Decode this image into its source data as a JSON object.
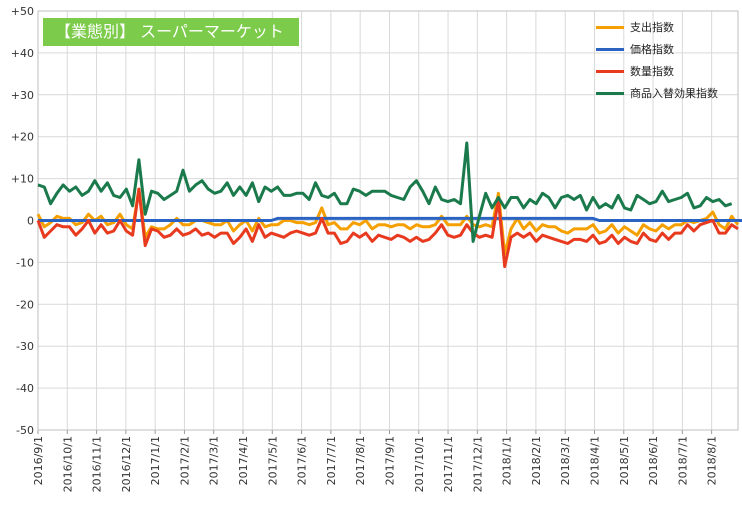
{
  "chart_data": {
    "type": "line",
    "title": "【業態別】 スーパーマーケット",
    "ylim": [
      -50,
      50
    ],
    "yticks": [
      "-50",
      "-40",
      "-30",
      "-20",
      "-10",
      "0",
      "+10",
      "+20",
      "+30",
      "+40",
      "+50"
    ],
    "ytick_values": [
      -50,
      -40,
      -30,
      -20,
      -10,
      0,
      10,
      20,
      30,
      40,
      50
    ],
    "xtick_labels": [
      "2016/9/1",
      "2016/10/1",
      "2016/11/1",
      "2016/12/1",
      "2017/1/1",
      "2017/2/1",
      "2017/3/1",
      "2017/4/1",
      "2017/5/1",
      "2017/6/1",
      "2017/7/1",
      "2017/8/1",
      "2017/9/1",
      "2017/10/1",
      "2017/11/1",
      "2017/12/1",
      "2018/1/1",
      "2018/2/1",
      "2018/3/1",
      "2018/4/1",
      "2018/5/1",
      "2018/6/1",
      "2018/7/1",
      "2018/8/1"
    ],
    "grid": true,
    "legend_position": "top-right",
    "series": [
      {
        "name": "支出指数",
        "color": "#f5a000",
        "values": [
          1.5,
          -1.5,
          -0.5,
          1,
          0.5,
          0.5,
          -1,
          -0.5,
          1.5,
          0,
          1,
          -1,
          -0.5,
          1.5,
          -1,
          -2,
          7.5,
          -4,
          -1.5,
          -2,
          -2,
          -1,
          0.5,
          -1,
          -1,
          0,
          0,
          -0.5,
          -1,
          -1,
          0,
          -2.5,
          -1,
          0,
          -2.5,
          0.5,
          -1.5,
          -1,
          -1,
          0,
          0,
          -0.5,
          -0.5,
          -1,
          -0.5,
          3,
          -1,
          -0.5,
          -2,
          -2,
          -0.5,
          -1,
          0,
          -2,
          -1,
          -1,
          -1.5,
          -1,
          -1,
          -2,
          -1,
          -1.5,
          -1.5,
          -1,
          1,
          -1,
          -1,
          -1,
          1,
          -1,
          -1.5,
          -1,
          -1.5,
          6.5,
          -8,
          -2,
          0.5,
          -2,
          -0.5,
          -2.5,
          -1,
          -1.5,
          -1.5,
          -2.5,
          -3,
          -2,
          -2,
          -2,
          -1,
          -3,
          -2.5,
          -1,
          -3,
          -1.5,
          -2.5,
          -3.5,
          -1,
          -2,
          -2.5,
          -1,
          -2,
          -1,
          -1,
          0,
          -0.5,
          0,
          0.5,
          2,
          -1,
          -2,
          1,
          -1
        ]
      },
      {
        "name": "価格指数",
        "color": "#2a63c2",
        "values": [
          0,
          0,
          0,
          0,
          0,
          0,
          0,
          0,
          0,
          0,
          0,
          0,
          0,
          0,
          0,
          0,
          0,
          0,
          0,
          0,
          0,
          0,
          0,
          0,
          0,
          0,
          0,
          0,
          0,
          0,
          0,
          0,
          0,
          0,
          0,
          0,
          0,
          0,
          0.5,
          0.5,
          0.5,
          0.5,
          0.5,
          0.5,
          0.5,
          0.5,
          0.5,
          0.5,
          0.5,
          0.5,
          0.5,
          0.5,
          0.5,
          0.5,
          0.5,
          0.5,
          0.5,
          0.5,
          0.5,
          0.5,
          0.5,
          0.5,
          0.5,
          0.5,
          0.5,
          0.5,
          0.5,
          0.5,
          0.5,
          0.5,
          0.5,
          0.5,
          0.5,
          0.5,
          0.5,
          0.5,
          0.5,
          0.5,
          0.5,
          0.5,
          0.5,
          0.5,
          0.5,
          0.5,
          0.5,
          0.5,
          0.5,
          0.5,
          0.5,
          0,
          0,
          0,
          0,
          0,
          0,
          0,
          0,
          0,
          0,
          0,
          0,
          0,
          0,
          0,
          0,
          0,
          0,
          0,
          0,
          0,
          0,
          0,
          0,
          0
        ]
      },
      {
        "name": "数量指数",
        "color": "#e83a1f",
        "values": [
          0,
          -4,
          -2.5,
          -1,
          -1.5,
          -1.5,
          -3.5,
          -2,
          0,
          -3,
          -1,
          -3,
          -2.5,
          0,
          -2.5,
          -3.5,
          7.5,
          -6,
          -2,
          -2.5,
          -4,
          -3.5,
          -2,
          -3.5,
          -3,
          -2,
          -3.5,
          -3,
          -4,
          -3,
          -3,
          -5.5,
          -4,
          -2,
          -5,
          -1,
          -4,
          -3,
          -3.5,
          -4,
          -3,
          -2.5,
          -3,
          -3.5,
          -3,
          0.5,
          -3,
          -3,
          -5.5,
          -5,
          -3,
          -4,
          -3,
          -5,
          -3.5,
          -4,
          -4.5,
          -3.5,
          -4,
          -5,
          -4,
          -5,
          -4.5,
          -3,
          -1,
          -3.5,
          -4,
          -3.5,
          -1,
          -3,
          -4,
          -3.5,
          -4,
          5,
          -11,
          -4,
          -3,
          -4,
          -3,
          -5,
          -3.5,
          -4,
          -4.5,
          -5,
          -5.5,
          -4.5,
          -4.5,
          -5,
          -3.5,
          -5.5,
          -5,
          -3.5,
          -5.5,
          -4,
          -5,
          -5.5,
          -3,
          -4.5,
          -5,
          -3,
          -4.5,
          -3,
          -3,
          -1,
          -2.5,
          -1,
          -0.5,
          0,
          -3,
          -3,
          -1,
          -2
        ]
      },
      {
        "name": "商品入替効果指数",
        "color": "#1a7a4c",
        "values": [
          8.5,
          8,
          4,
          6.5,
          8.5,
          7,
          8,
          6,
          7,
          9.5,
          7,
          9,
          6,
          5.5,
          7.5,
          3.5,
          14.5,
          1.5,
          7,
          6.5,
          5,
          6,
          7,
          12,
          7,
          8.5,
          9.5,
          7.5,
          6.5,
          7,
          9,
          6,
          8,
          6,
          9,
          4.5,
          8,
          7,
          8,
          6,
          6,
          6.5,
          6.5,
          5,
          9,
          6,
          5.5,
          6.5,
          4,
          4,
          7.5,
          7,
          6,
          7,
          7,
          7,
          6,
          5.5,
          5,
          8,
          9.5,
          7,
          4,
          8,
          5,
          4.5,
          5,
          4,
          18.5,
          -5,
          1,
          6.5,
          3,
          5.5,
          3,
          5.5,
          5.5,
          3,
          5,
          4,
          6.5,
          5.5,
          3,
          5.5,
          6,
          5,
          6,
          2.5,
          5.5,
          3,
          4,
          3,
          6,
          3,
          2.5,
          6,
          5,
          4,
          4.5,
          7,
          4.5,
          5,
          5.5,
          6.5,
          3,
          3.5,
          5.5,
          4.5,
          5,
          3.5,
          4
        ]
      }
    ]
  }
}
